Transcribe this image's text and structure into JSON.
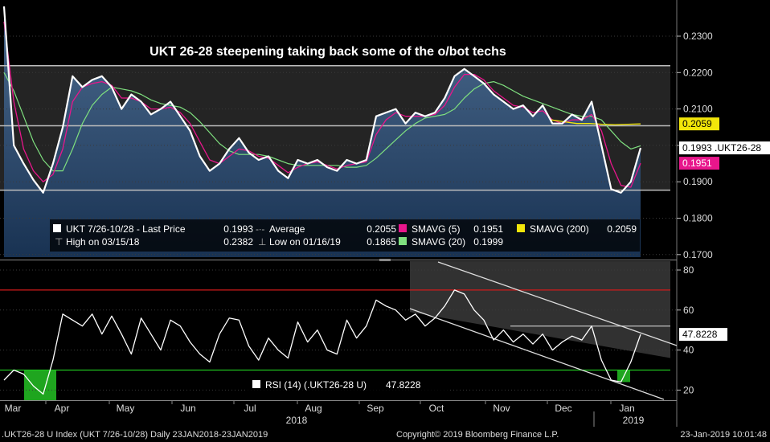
{
  "chart_data": [
    {
      "type": "line",
      "title": "UKT 26-28 steepening taking back some of the o/bot techs",
      "ylim": [
        0.165,
        0.24
      ],
      "y_ticks": [
        "0.2300",
        "0.2200",
        "0.2100",
        "0.2000",
        "0.1900",
        "0.1800",
        "0.1700"
      ],
      "grid": true,
      "legend_position": "bottom-left",
      "series": [
        {
          "name": "UKT 7/26-10/28 - Last Price",
          "color": "#ffffff",
          "last": 0.1993,
          "last_label": "0.1993 .UKT26-28",
          "values": [
            0.2382,
            0.2,
            0.195,
            0.1905,
            0.187,
            0.195,
            0.205,
            0.219,
            0.216,
            0.218,
            0.219,
            0.216,
            0.21,
            0.214,
            0.212,
            0.2085,
            0.21,
            0.212,
            0.208,
            0.204,
            0.197,
            0.193,
            0.195,
            0.199,
            0.202,
            0.198,
            0.196,
            0.197,
            0.193,
            0.191,
            0.196,
            0.195,
            0.196,
            0.194,
            0.193,
            0.196,
            0.195,
            0.196,
            0.208,
            0.209,
            0.21,
            0.206,
            0.209,
            0.208,
            0.209,
            0.213,
            0.219,
            0.221,
            0.219,
            0.217,
            0.214,
            0.212,
            0.21,
            0.211,
            0.208,
            0.211,
            0.206,
            0.206,
            0.2085,
            0.207,
            0.212,
            0.2,
            0.188,
            0.187,
            0.19,
            0.1993
          ]
        },
        {
          "name": "SMAVG (5)",
          "color": "#e8168c",
          "last": 0.1951,
          "values": [
            0.234,
            0.212,
            0.199,
            0.193,
            0.19,
            0.192,
            0.199,
            0.212,
            0.216,
            0.217,
            0.2175,
            0.2165,
            0.213,
            0.213,
            0.212,
            0.21,
            0.21,
            0.2105,
            0.209,
            0.206,
            0.201,
            0.196,
            0.195,
            0.197,
            0.199,
            0.1985,
            0.197,
            0.1965,
            0.1945,
            0.1925,
            0.194,
            0.195,
            0.1955,
            0.1945,
            0.1935,
            0.1945,
            0.195,
            0.1955,
            0.203,
            0.207,
            0.209,
            0.208,
            0.208,
            0.208,
            0.2085,
            0.211,
            0.216,
            0.2195,
            0.2195,
            0.218,
            0.215,
            0.213,
            0.211,
            0.2105,
            0.209,
            0.2095,
            0.207,
            0.206,
            0.207,
            0.207,
            0.2085,
            0.204,
            0.195,
            0.189,
            0.1885,
            0.1951
          ]
        },
        {
          "name": "SMAVG (20)",
          "color": "#7fe07f",
          "last": 0.1999,
          "values": [
            0.22,
            0.215,
            0.208,
            0.201,
            0.196,
            0.193,
            0.193,
            0.199,
            0.206,
            0.211,
            0.214,
            0.216,
            0.2155,
            0.215,
            0.214,
            0.2125,
            0.2115,
            0.211,
            0.2105,
            0.209,
            0.2065,
            0.2035,
            0.2005,
            0.1985,
            0.1975,
            0.1975,
            0.1975,
            0.197,
            0.196,
            0.195,
            0.1945,
            0.1945,
            0.1945,
            0.1945,
            0.1945,
            0.194,
            0.194,
            0.1945,
            0.1965,
            0.199,
            0.2015,
            0.204,
            0.206,
            0.2075,
            0.208,
            0.2085,
            0.21,
            0.213,
            0.2155,
            0.217,
            0.2175,
            0.2165,
            0.215,
            0.2135,
            0.2125,
            0.2115,
            0.2105,
            0.2095,
            0.2085,
            0.208,
            0.208,
            0.207,
            0.204,
            0.201,
            0.199,
            0.1999
          ]
        },
        {
          "name": "SMAVG (200)",
          "color": "#f2e60a",
          "last": 0.2059,
          "values": [
            0.207,
            0.2065,
            0.206,
            0.206,
            0.2058,
            0.2057,
            0.2058,
            0.2059
          ]
        },
        {
          "name": "Average",
          "color": "#bfbfbf",
          "last": 0.2055,
          "values": [
            0.2055,
            0.2055
          ]
        }
      ],
      "legend": {
        "row1": [
          {
            "key": "last",
            "label": "UKT 7/26-10/28 - Last Price",
            "value": "0.1993",
            "swatch": "#ffffff"
          },
          {
            "key": "average",
            "label": "Average",
            "value": "0.2055"
          },
          {
            "key": "sma5",
            "label": "SMAVG (5)",
            "value": "0.1951",
            "swatch": "#e8168c"
          },
          {
            "key": "sma200",
            "label": "SMAVG (200)",
            "value": "0.2059",
            "swatch": "#f2e60a"
          }
        ],
        "row2": [
          {
            "key": "high",
            "label": "High on 03/15/18",
            "value": "0.2382"
          },
          {
            "key": "low",
            "label": "Low on 01/16/19",
            "value": "0.1865"
          },
          {
            "key": "sma20",
            "label": "SMAVG (20)",
            "value": "0.1999",
            "swatch": "#7fe07f"
          }
        ]
      },
      "right_labels": [
        {
          "text": "0.2059",
          "value": 0.2059,
          "bg": "#f2e60a",
          "fg": "#000000"
        },
        {
          "text": "0.1993 .UKT26-28",
          "value": 0.1993,
          "bg": "#ffffff",
          "fg": "#000000"
        },
        {
          "text": "0.1951",
          "value": 0.1951,
          "bg": "#e8168c",
          "fg": "#ffffff"
        }
      ],
      "reference_lines": [
        0.2219,
        0.2054,
        0.1877
      ],
      "annotations": {
        "upper_box_ylim": [
          0.1877,
          0.2219
        ],
        "shaded_box_ylim": [
          0.1877,
          0.2054
        ]
      }
    },
    {
      "type": "line",
      "ylim": [
        15,
        82
      ],
      "y_ticks": [
        "80",
        "60",
        "40",
        "20"
      ],
      "series": [
        {
          "name": "RSI (14) (.UKT26-28 U)",
          "color": "#ffffff",
          "last": 47.8228,
          "values": [
            25,
            30,
            28,
            22,
            18,
            35,
            58,
            55,
            52,
            58,
            48,
            57,
            48,
            38,
            56,
            48,
            40,
            55,
            52,
            44,
            38,
            34,
            48,
            56,
            55,
            42,
            35,
            46,
            40,
            36,
            54,
            44,
            50,
            40,
            38,
            55,
            46,
            52,
            65,
            62,
            60,
            55,
            58,
            52,
            56,
            62,
            70,
            68,
            60,
            55,
            45,
            50,
            44,
            48,
            43,
            48,
            40,
            44,
            47,
            45,
            52,
            35,
            25,
            24,
            34,
            47.8228
          ]
        }
      ],
      "legend_label": "RSI (14) (.UKT26-28 U)",
      "legend_value": "47.8228",
      "right_label": "47.8228",
      "reference_lines": [
        {
          "value": 70,
          "color": "#d11a1a"
        },
        {
          "value": 30,
          "color": "#1fc21f"
        },
        {
          "value": 52,
          "color": "#bfbfbf"
        }
      ],
      "channel": {
        "upper": [
          [
            0,
            80
          ],
          [
            1,
            36
          ]
        ],
        "lower": [
          [
            0,
            59
          ],
          [
            1,
            14
          ]
        ]
      }
    }
  ],
  "x_axis": {
    "months": [
      "Mar",
      "Apr",
      "May",
      "Jun",
      "Jul",
      "Aug",
      "Sep",
      "Oct",
      "Nov",
      "Dec",
      "Jan"
    ],
    "years": [
      "2018",
      "2019"
    ]
  },
  "footer": {
    "left": ".UKT26-28 U Index (UKT 7/26-10/28)  Daily 23JAN2018-23JAN2019",
    "center": "Copyright© 2019 Bloomberg Finance L.P.",
    "right": "23-Jan-2019 10:01:48"
  }
}
